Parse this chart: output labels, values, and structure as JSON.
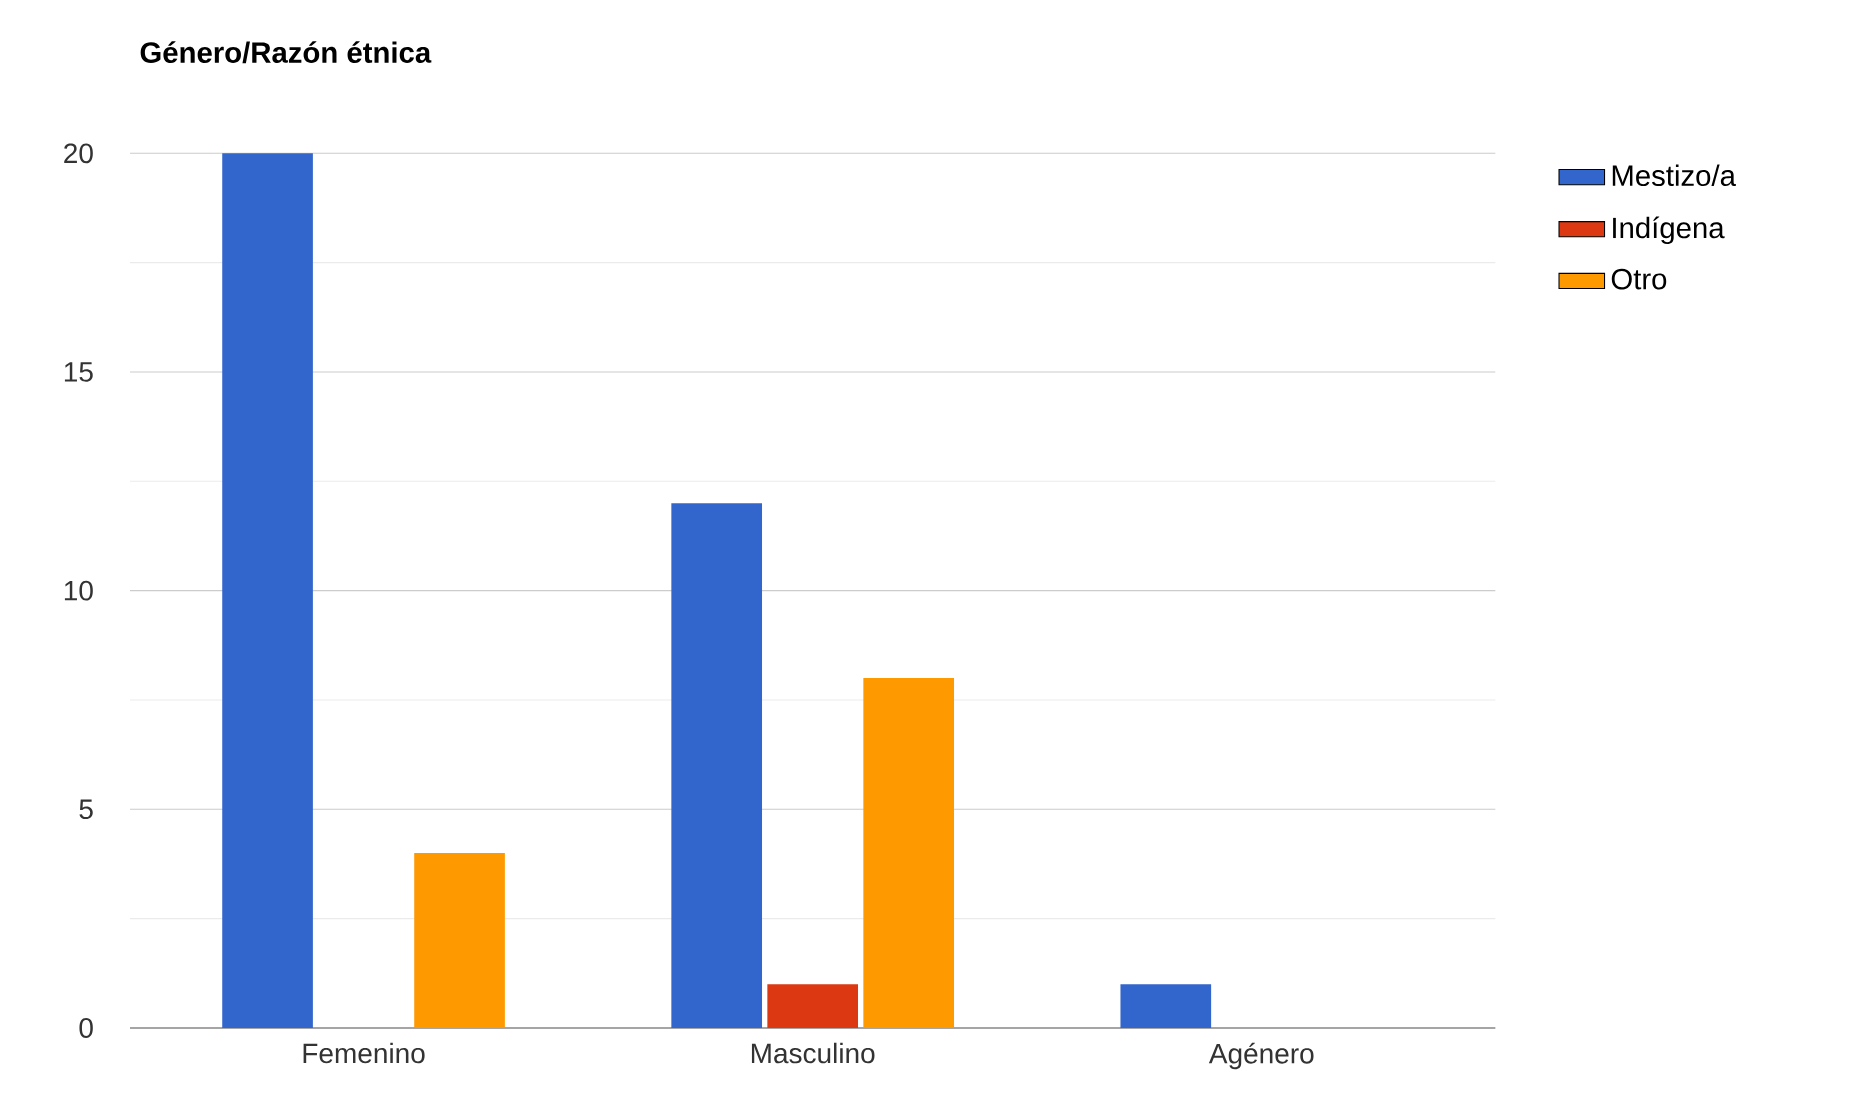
{
  "chart_data": {
    "type": "bar",
    "title": "Género/Razón étnica",
    "categories": [
      "Femenino",
      "Masculino",
      "Agénero"
    ],
    "series": [
      {
        "name": "Mestizo/a",
        "color": "#3366cc",
        "values": [
          20,
          12,
          1
        ]
      },
      {
        "name": "Indígena",
        "color": "#dc3912",
        "values": [
          0,
          1,
          0
        ]
      },
      {
        "name": "Otro",
        "color": "#ff9900",
        "values": [
          4,
          8,
          0
        ]
      }
    ],
    "ylim": [
      0,
      20
    ],
    "yticks": [
      0,
      {
        "value": 2.5,
        "label": null
      },
      5,
      {
        "value": 7.5,
        "label": null
      },
      10,
      {
        "value": 12.5,
        "label": null
      },
      15,
      {
        "value": 17.5,
        "label": null
      },
      20
    ],
    "grid": "y",
    "legend": "right"
  }
}
